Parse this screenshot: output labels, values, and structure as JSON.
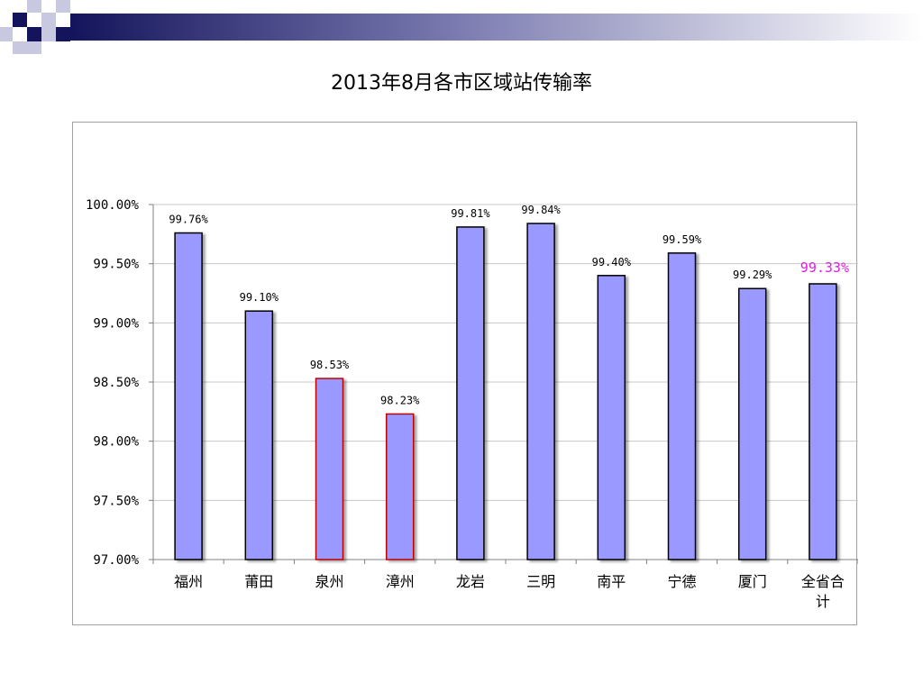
{
  "slide": {
    "title": "2013年8月各市区域站传输率",
    "colors": {
      "accent_dark": "#14145c",
      "accent_mid": "#5a5a9a",
      "accent_light": "#b8b8d8"
    }
  },
  "chart_data": {
    "type": "bar",
    "title": "2013年8月各市区域站传输率",
    "xlabel": "",
    "ylabel": "",
    "categories": [
      "福州",
      "莆田",
      "泉州",
      "漳州",
      "龙岩",
      "三明",
      "南平",
      "宁德",
      "厦门",
      "全省合计"
    ],
    "values": [
      99.76,
      99.1,
      98.53,
      98.23,
      99.81,
      99.84,
      99.4,
      99.59,
      99.29,
      99.33
    ],
    "data_labels": [
      "99.76%",
      "99.10%",
      "98.53%",
      "98.23%",
      "99.81%",
      "99.84%",
      "99.40%",
      "99.59%",
      "99.29%",
      "99.33%"
    ],
    "ylim": [
      97.0,
      100.0
    ],
    "yticks": [
      97.0,
      97.5,
      98.0,
      98.5,
      99.0,
      99.5,
      100.0
    ],
    "ytick_labels": [
      "97.00%",
      "97.50%",
      "98.00%",
      "98.50%",
      "99.00%",
      "99.50%",
      "100.00%"
    ],
    "grid": true,
    "legend": "none",
    "bar_fill": "#9999ff",
    "bar_border": "#000000",
    "highlight_border": "#c00000",
    "highlighted": [
      "泉州",
      "漳州"
    ],
    "total_label_color": "#e020e0"
  }
}
